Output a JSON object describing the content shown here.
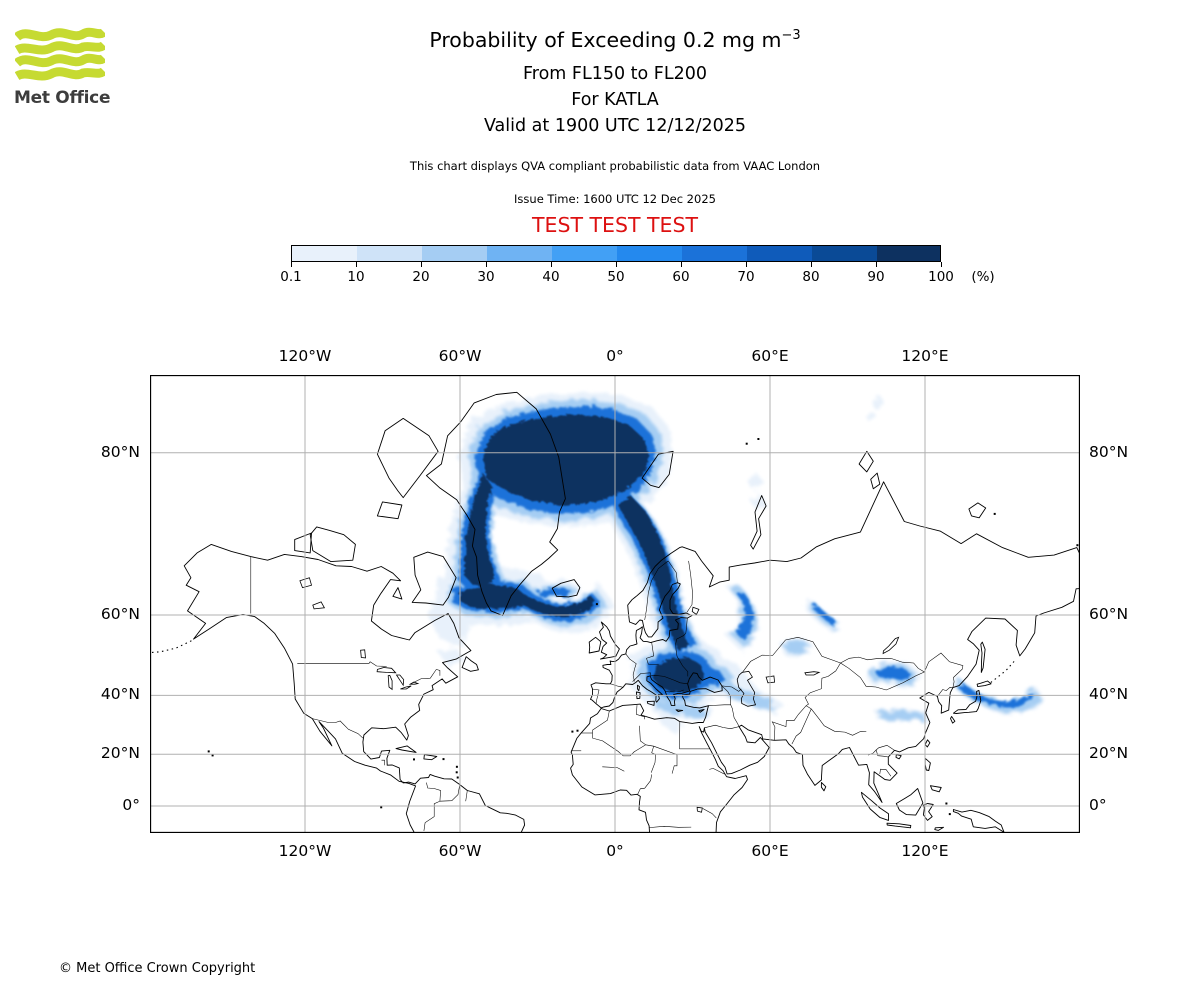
{
  "header": {
    "logo_text": "Met Office",
    "logo_green": "#c6da32",
    "title_main": "Probability of Exceeding 0.2 mg m",
    "title_sup": "−3",
    "subtitle_flight_levels": "From FL150 to FL200",
    "subtitle_volcano": "For KATLA",
    "subtitle_valid": "Valid at 1900 UTC 12/12/2025",
    "note": "This chart displays QVA compliant probabilistic data from VAAC London",
    "issue_time": "Issue Time: 1600 UTC 12 Dec 2025",
    "test_banner": "TEST TEST TEST",
    "test_banner_color": "#dd1111"
  },
  "colorbar": {
    "ticks": [
      "0.1",
      "10",
      "20",
      "30",
      "40",
      "50",
      "60",
      "70",
      "80",
      "90",
      "100"
    ],
    "unit": "(%)",
    "colors": [
      "#e8f1fb",
      "#cfe3f8",
      "#a5cdf3",
      "#6fb3f3",
      "#42a0f5",
      "#2489ee",
      "#1b72d9",
      "#0f5bba",
      "#0a4a96",
      "#0d3160"
    ]
  },
  "map": {
    "lon_labels": [
      "120°W",
      "60°W",
      "0°",
      "60°E",
      "120°E"
    ],
    "lat_labels": [
      "80°N",
      "60°N",
      "40°N",
      "20°N",
      "0°"
    ],
    "grid_color": "#b0b0b0",
    "coast_color": "#000000"
  },
  "footer": {
    "copyright": "© Met Office Crown Copyright"
  },
  "chart_data": {
    "type": "heatmap",
    "title": "Probability of Exceeding 0.2 mg m−3",
    "subtitle": [
      "From FL150 to FL200",
      "For KATLA",
      "Valid at 1900 UTC 12/12/2025"
    ],
    "legend": {
      "ticks": [
        0.1,
        10,
        20,
        30,
        40,
        50,
        60,
        70,
        80,
        90,
        100
      ],
      "unit": "%"
    },
    "projection": "Mercator",
    "lon_range": [
      -180,
      180
    ],
    "lat_range": [
      -10.5,
      84
    ],
    "lon_gridlines_deg": [
      -120,
      -60,
      0,
      60,
      120
    ],
    "lat_gridlines_deg": [
      80,
      60,
      40,
      20,
      0
    ],
    "high_probability_regions": [
      {
        "area": "Arctic Ocean between NE Greenland and Svalbard",
        "probability_pct": "90-100"
      },
      {
        "area": "East and South Greenland coastal waters",
        "probability_pct": "60-100"
      },
      {
        "area": "Vortex / swirl south and south-west of Iceland",
        "probability_pct": "30-70"
      },
      {
        "area": "Narrow band from Norwegian Sea across Scandinavia",
        "probability_pct": "60-100"
      },
      {
        "area": "Carpathian basin and Balkans blob",
        "probability_pct": "90-100"
      },
      {
        "area": "Comma-shaped arc over north-west Russia",
        "probability_pct": "30-60"
      },
      {
        "area": "Faint streaks over west Siberia, Mongolia, central China and from Japan into the Pacific",
        "probability_pct": "0.1-30"
      }
    ]
  }
}
